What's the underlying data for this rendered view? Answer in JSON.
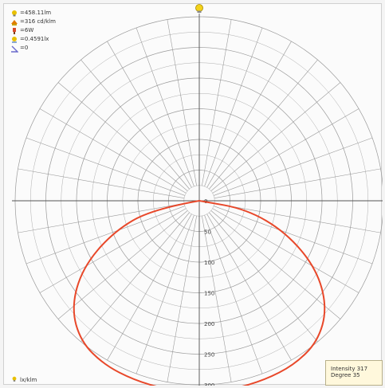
{
  "legend": [
    {
      "text": "=458.11lm",
      "icon": "bulb-icon",
      "color": "#e8c000"
    },
    {
      "text": "=316 cd/klm",
      "icon": "flame-icon",
      "color": "#e07b00"
    },
    {
      "text": "=6W",
      "icon": "plug-icon",
      "color": "#d94a2a"
    },
    {
      "text": "=0.4591lx",
      "icon": "lamp-icon",
      "color": "#e8c000"
    },
    {
      "text": "=0",
      "icon": "angle-icon",
      "color": "#6a6acb"
    }
  ],
  "readout": {
    "intensity": "Intensity 317",
    "degree": "Degree 35"
  },
  "footer_text": "lx/klm",
  "colors": {
    "curve": "#e8482a",
    "grid": "#9a9a9a",
    "axis": "#555555",
    "tick_label": "#444444"
  },
  "chart_data": {
    "type": "polar",
    "r_ticks": [
      0,
      50,
      100,
      150,
      200,
      250,
      300
    ],
    "r_tick_labels": [
      "0",
      "50",
      "100",
      "150",
      "200",
      "250",
      "300"
    ],
    "rmax": 300,
    "grid": true,
    "angular_step_deg": 10,
    "series": [
      {
        "type": "line",
        "angle_deg": [
          0,
          10,
          20,
          30,
          40,
          50,
          60,
          70,
          80,
          90
        ],
        "values": [
          312,
          312,
          311,
          309,
          300,
          272,
          220,
          150,
          78,
          0
        ]
      }
    ]
  }
}
